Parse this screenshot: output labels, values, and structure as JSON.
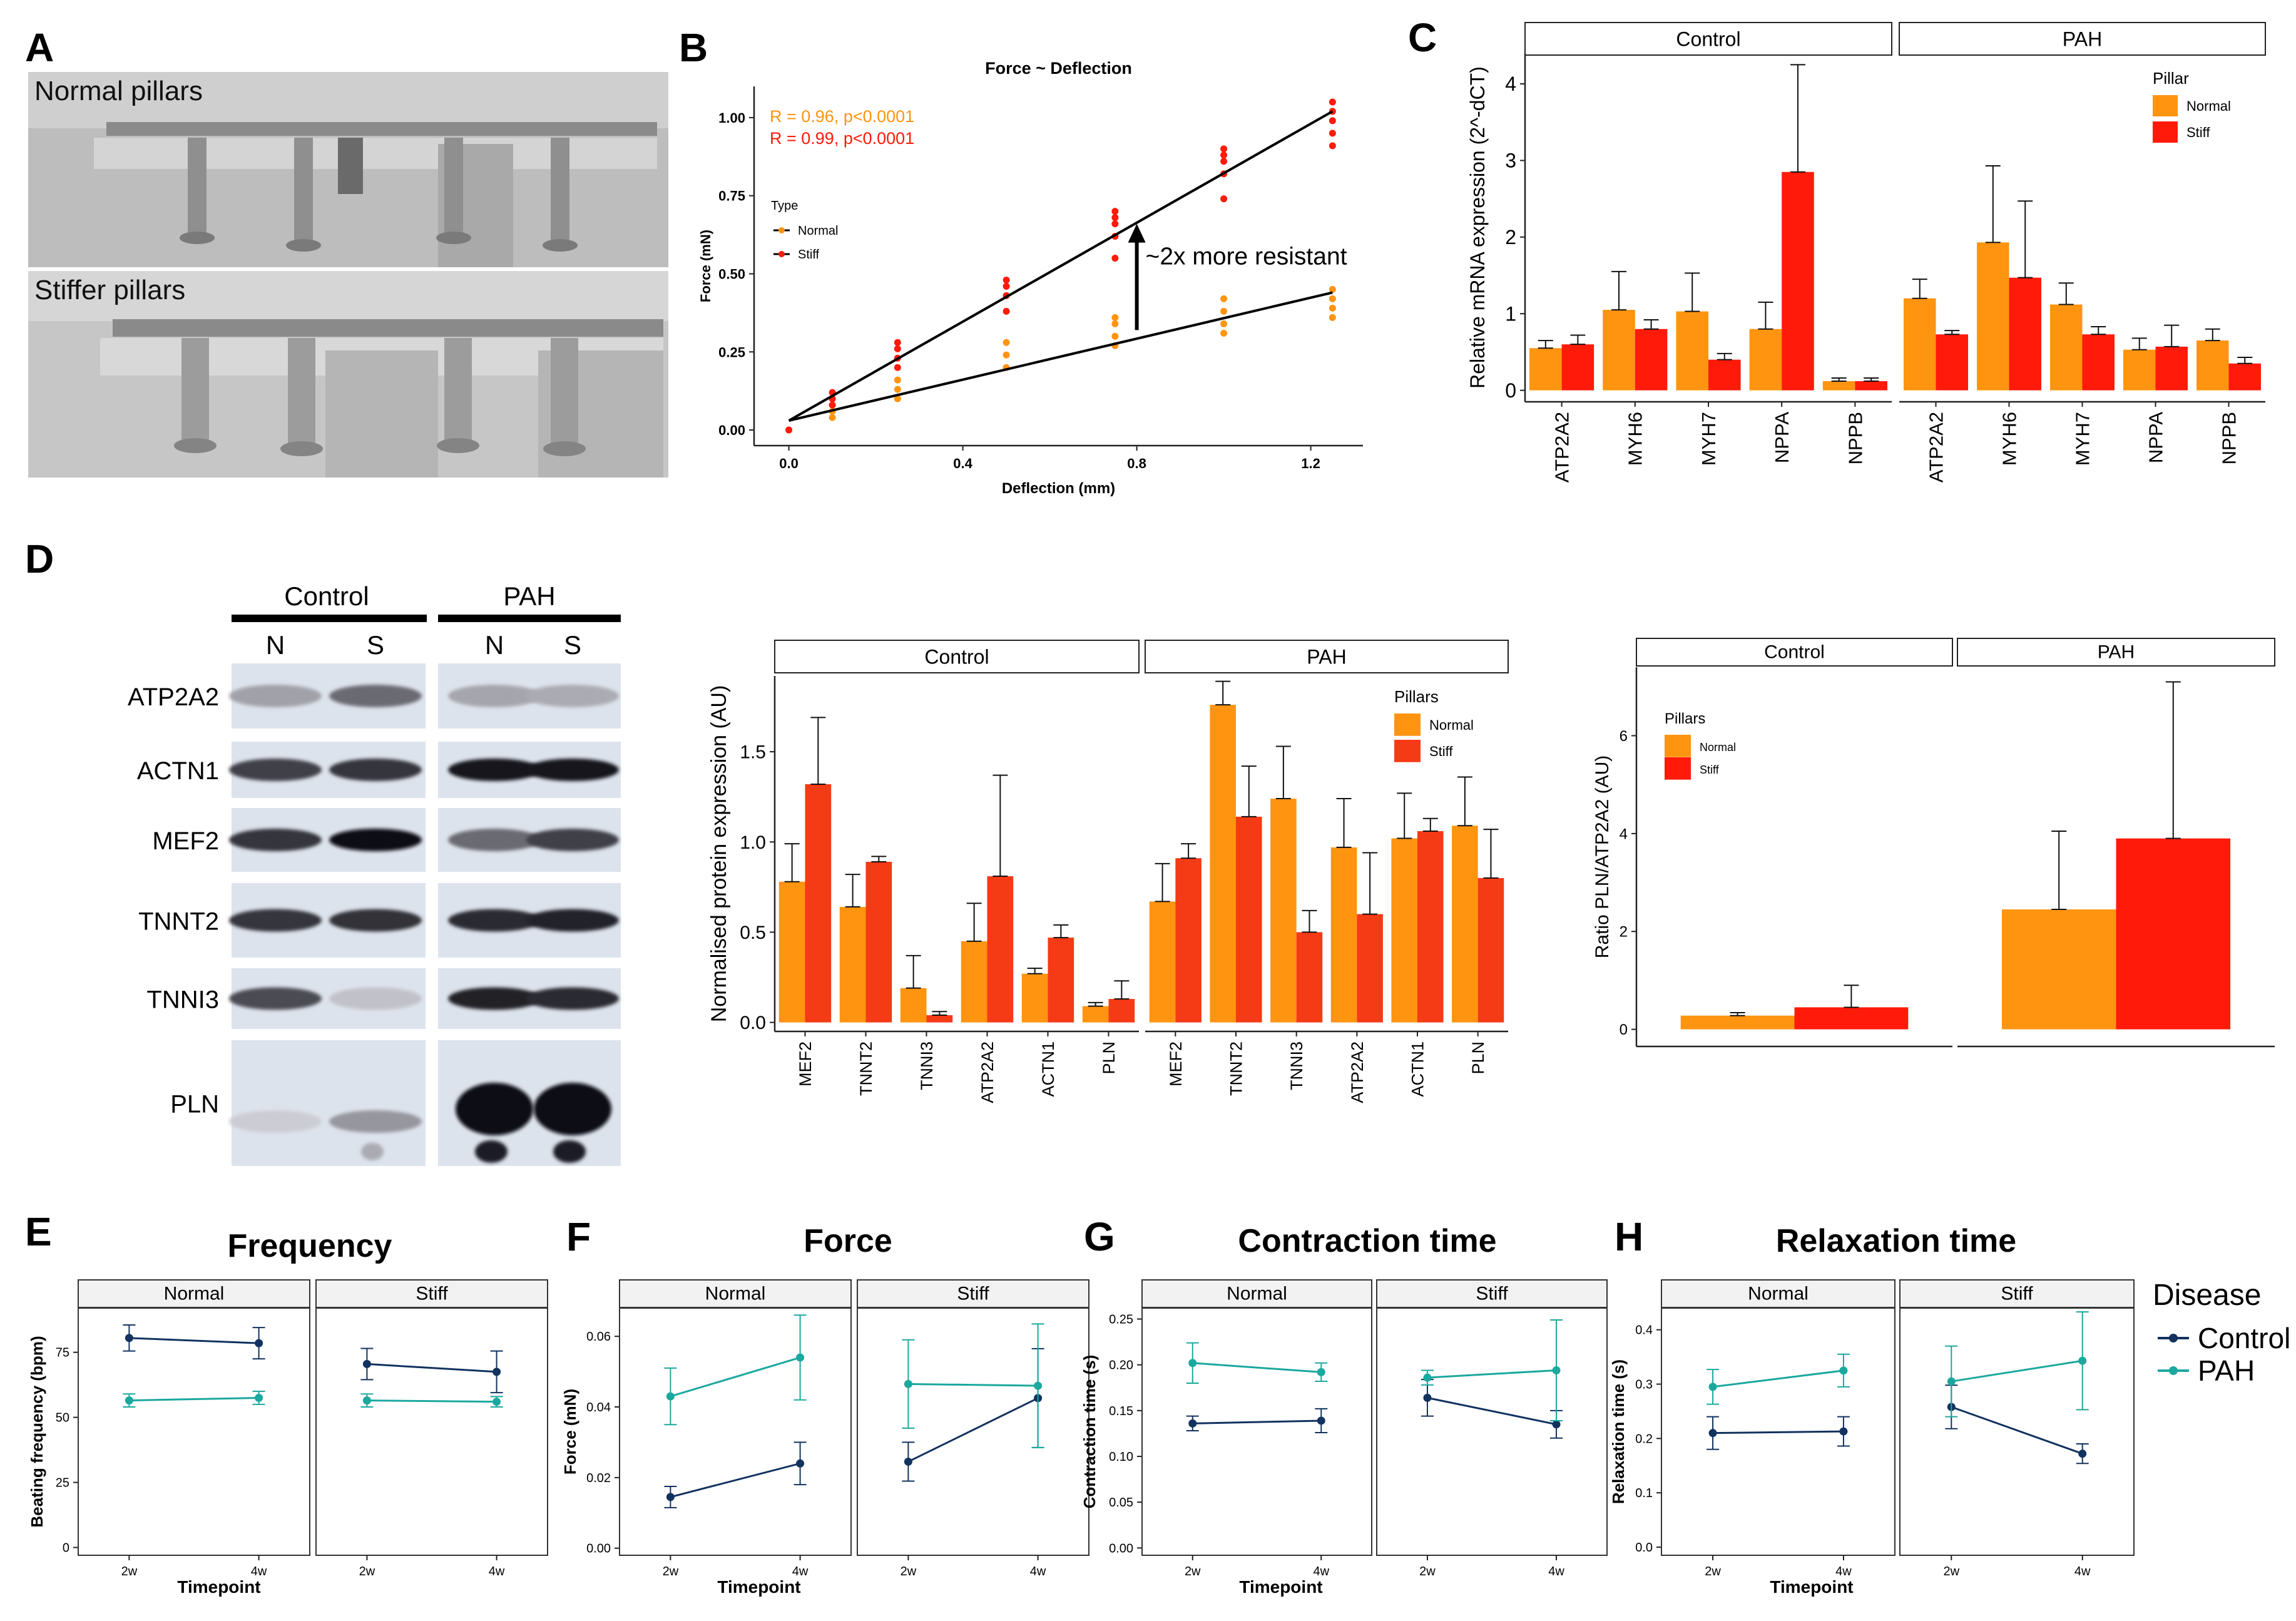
{
  "panel_letters": {
    "A": "A",
    "B": "B",
    "C": "C",
    "D": "D",
    "E": "E",
    "F": "F",
    "G": "G",
    "H": "H"
  },
  "colors": {
    "normal": "#ff9410",
    "stiff": "#ff1a0a",
    "stiff_d": "#f53a16",
    "control": "#12325f",
    "pah": "#1ba89e",
    "axis": "#222222",
    "strip": "#f2f2f2"
  },
  "panel_a": {
    "top_label": "Normal pillars",
    "bottom_label": "Stiffer pillars"
  },
  "blot": {
    "groups": [
      "Control",
      "PAH"
    ],
    "lanes": [
      "N",
      "S",
      "N",
      "S"
    ],
    "proteins": [
      "ATP2A2",
      "ACTN1",
      "MEF2",
      "TNNT2",
      "TNNI3",
      "PLN"
    ],
    "intensity": [
      [
        0.3,
        0.55,
        0.28,
        0.25
      ],
      [
        0.75,
        0.8,
        0.95,
        0.95
      ],
      [
        0.8,
        0.98,
        0.55,
        0.75
      ],
      [
        0.8,
        0.82,
        0.85,
        0.88
      ],
      [
        0.7,
        0.15,
        0.9,
        0.85
      ],
      [
        0.1,
        0.35,
        1.0,
        1.0
      ]
    ]
  },
  "chart_data": [
    {
      "id": "B",
      "type": "scatter",
      "title": "Force ~ Deflection",
      "xlabel": "Deflection (mm)",
      "ylabel": "Force (mN)",
      "xlim": [
        -0.08,
        1.32
      ],
      "ylim": [
        -0.05,
        1.1
      ],
      "xticks": [
        0.0,
        0.4,
        0.8,
        1.2
      ],
      "xtick_labels": [
        "0.0",
        "0.4",
        "0.8",
        "1.2"
      ],
      "yticks": [
        0.0,
        0.25,
        0.5,
        0.75,
        1.0
      ],
      "ytick_labels": [
        "0.00",
        "0.25",
        "0.50",
        "0.75",
        "1.00"
      ],
      "legend": {
        "title": "Type",
        "entries": [
          "Normal",
          "Stiff"
        ]
      },
      "stats": [
        "R = 0.96, p<0.0001",
        "R = 0.99, p<0.0001"
      ],
      "annotation": "~2x more resistant",
      "series": [
        {
          "name": "Normal",
          "fit": [
            [
              0,
              0.03
            ],
            [
              1.25,
              0.44
            ]
          ],
          "points": [
            [
              0,
              0.0
            ],
            [
              0.1,
              0.04
            ],
            [
              0.1,
              0.06
            ],
            [
              0.1,
              0.08
            ],
            [
              0.25,
              0.1
            ],
            [
              0.25,
              0.13
            ],
            [
              0.25,
              0.16
            ],
            [
              0.5,
              0.2
            ],
            [
              0.5,
              0.24
            ],
            [
              0.5,
              0.28
            ],
            [
              0.75,
              0.27
            ],
            [
              0.75,
              0.3
            ],
            [
              0.75,
              0.34
            ],
            [
              0.75,
              0.36
            ],
            [
              1.0,
              0.31
            ],
            [
              1.0,
              0.34
            ],
            [
              1.0,
              0.38
            ],
            [
              1.0,
              0.42
            ],
            [
              1.25,
              0.36
            ],
            [
              1.25,
              0.39
            ],
            [
              1.25,
              0.42
            ],
            [
              1.25,
              0.45
            ]
          ]
        },
        {
          "name": "Stiff",
          "fit": [
            [
              0,
              0.03
            ],
            [
              1.25,
              1.02
            ]
          ],
          "points": [
            [
              0,
              0.0
            ],
            [
              0.1,
              0.08
            ],
            [
              0.1,
              0.1
            ],
            [
              0.1,
              0.12
            ],
            [
              0.25,
              0.2
            ],
            [
              0.25,
              0.23
            ],
            [
              0.25,
              0.26
            ],
            [
              0.25,
              0.28
            ],
            [
              0.5,
              0.38
            ],
            [
              0.5,
              0.43
            ],
            [
              0.5,
              0.46
            ],
            [
              0.5,
              0.48
            ],
            [
              0.75,
              0.55
            ],
            [
              0.75,
              0.62
            ],
            [
              0.75,
              0.66
            ],
            [
              0.75,
              0.68
            ],
            [
              0.75,
              0.7
            ],
            [
              1.0,
              0.74
            ],
            [
              1.0,
              0.82
            ],
            [
              1.0,
              0.86
            ],
            [
              1.0,
              0.88
            ],
            [
              1.0,
              0.9
            ],
            [
              1.25,
              0.91
            ],
            [
              1.25,
              0.95
            ],
            [
              1.25,
              0.99
            ],
            [
              1.25,
              1.02
            ],
            [
              1.25,
              1.05
            ]
          ]
        }
      ]
    },
    {
      "id": "C",
      "type": "bar",
      "ylabel": "Relative mRNA expression (2^-dCT)",
      "ylim": [
        -0.15,
        4.4
      ],
      "yticks": [
        0,
        1,
        2,
        3,
        4
      ],
      "ytick_labels": [
        "0",
        "1",
        "2",
        "3",
        "4"
      ],
      "legend": {
        "title": "Pillar",
        "entries": [
          "Normal",
          "Stiff"
        ]
      },
      "facets": [
        {
          "label": "Control",
          "categories": [
            "ATP2A2",
            "MYH6",
            "MYH7",
            "NPPA",
            "NPPB"
          ],
          "series": [
            {
              "name": "Normal",
              "values": [
                0.55,
                1.05,
                1.03,
                0.8,
                0.12
              ],
              "errors": [
                0.1,
                0.5,
                0.5,
                0.35,
                0.04
              ]
            },
            {
              "name": "Stiff",
              "values": [
                0.6,
                0.8,
                0.4,
                2.85,
                0.12
              ],
              "errors": [
                0.12,
                0.12,
                0.08,
                1.4,
                0.04
              ]
            }
          ]
        },
        {
          "label": "PAH",
          "categories": [
            "ATP2A2",
            "MYH6",
            "MYH7",
            "NPPA",
            "NPPB"
          ],
          "series": [
            {
              "name": "Normal",
              "values": [
                1.2,
                1.93,
                1.12,
                0.53,
                0.65
              ],
              "errors": [
                0.25,
                1.0,
                0.28,
                0.15,
                0.15
              ]
            },
            {
              "name": "Stiff",
              "values": [
                0.73,
                1.47,
                0.73,
                0.57,
                0.35
              ],
              "errors": [
                0.05,
                1.0,
                0.1,
                0.28,
                0.08
              ]
            }
          ]
        }
      ]
    },
    {
      "id": "D2",
      "type": "bar",
      "ylabel": "Normalised protein expression (AU)",
      "ylim": [
        -0.05,
        1.92
      ],
      "yticks": [
        0.0,
        0.5,
        1.0,
        1.5
      ],
      "ytick_labels": [
        "0.0",
        "0.5",
        "1.0",
        "1.5"
      ],
      "legend": {
        "title": "Pillars",
        "entries": [
          "Normal",
          "Stiff"
        ]
      },
      "facets": [
        {
          "label": "Control",
          "categories": [
            "MEF2",
            "TNNT2",
            "TNNI3",
            "ATP2A2",
            "ACTN1",
            "PLN"
          ],
          "series": [
            {
              "name": "Normal",
              "values": [
                0.78,
                0.64,
                0.19,
                0.45,
                0.27,
                0.09
              ],
              "errors": [
                0.21,
                0.18,
                0.18,
                0.21,
                0.03,
                0.02
              ]
            },
            {
              "name": "Stiff",
              "values": [
                1.32,
                0.89,
                0.04,
                0.81,
                0.47,
                0.13
              ],
              "errors": [
                0.37,
                0.03,
                0.02,
                0.56,
                0.07,
                0.1
              ]
            }
          ]
        },
        {
          "label": "PAH",
          "categories": [
            "MEF2",
            "TNNT2",
            "TNNI3",
            "ATP2A2",
            "ACTN1",
            "PLN"
          ],
          "series": [
            {
              "name": "Normal",
              "values": [
                0.67,
                1.76,
                1.24,
                0.97,
                1.02,
                1.09
              ],
              "errors": [
                0.21,
                0.13,
                0.29,
                0.27,
                0.25,
                0.27
              ]
            },
            {
              "name": "Stiff",
              "values": [
                0.91,
                1.14,
                0.5,
                0.6,
                1.06,
                0.8
              ],
              "errors": [
                0.08,
                0.28,
                0.12,
                0.34,
                0.07,
                0.27
              ]
            }
          ]
        }
      ]
    },
    {
      "id": "D3",
      "type": "bar",
      "ylabel": "Ratio PLN/ATP2A2 (AU)",
      "ylim": [
        -0.35,
        7.4
      ],
      "yticks": [
        0,
        2,
        4,
        6
      ],
      "ytick_labels": [
        "0",
        "2",
        "4",
        "6"
      ],
      "legend": {
        "title": "Pillars",
        "entries": [
          "Normal",
          "Stiff"
        ]
      },
      "facets": [
        {
          "label": "Control",
          "categories": [
            ""
          ],
          "series": [
            {
              "name": "Normal",
              "values": [
                0.28
              ],
              "errors": [
                0.06
              ]
            },
            {
              "name": "Stiff",
              "values": [
                0.45
              ],
              "errors": [
                0.45
              ]
            }
          ]
        },
        {
          "label": "PAH",
          "categories": [
            ""
          ],
          "series": [
            {
              "name": "Normal",
              "values": [
                2.45
              ],
              "errors": [
                1.6
              ]
            },
            {
              "name": "Stiff",
              "values": [
                3.9
              ],
              "errors": [
                3.2
              ]
            }
          ]
        }
      ]
    },
    {
      "id": "E",
      "type": "line",
      "title": "Frequency",
      "xlabel": "Timepoint",
      "ylabel": "Beating frequency (bpm)",
      "ylim": [
        -3,
        92
      ],
      "yticks": [
        0,
        25,
        50,
        75
      ],
      "ytick_labels": [
        "0",
        "25",
        "50",
        "75"
      ],
      "categories": [
        "2w",
        "4w"
      ],
      "facets": [
        {
          "label": "Normal",
          "series": [
            {
              "name": "Control",
              "values": [
                80.5,
                78.5
              ],
              "errors": [
                5,
                6
              ]
            },
            {
              "name": "PAH",
              "values": [
                56.5,
                57.5
              ],
              "errors": [
                2.5,
                2.5
              ]
            }
          ]
        },
        {
          "label": "Stiff",
          "series": [
            {
              "name": "Control",
              "values": [
                70.5,
                67.5
              ],
              "errors": [
                6,
                8
              ]
            },
            {
              "name": "PAH",
              "values": [
                56.5,
                56.0
              ],
              "errors": [
                2.5,
                2
              ]
            }
          ]
        }
      ]
    },
    {
      "id": "F",
      "type": "line",
      "title": "Force",
      "xlabel": "Timepoint",
      "ylabel": "Force (mN)",
      "ylim": [
        -0.002,
        0.068
      ],
      "yticks": [
        0.0,
        0.02,
        0.04,
        0.06
      ],
      "ytick_labels": [
        "0.00",
        "0.02",
        "0.04",
        "0.06"
      ],
      "categories": [
        "2w",
        "4w"
      ],
      "facets": [
        {
          "label": "Normal",
          "series": [
            {
              "name": "Control",
              "values": [
                0.0145,
                0.024
              ],
              "errors": [
                0.003,
                0.006
              ]
            },
            {
              "name": "PAH",
              "values": [
                0.043,
                0.054
              ],
              "errors": [
                0.008,
                0.012
              ]
            }
          ]
        },
        {
          "label": "Stiff",
          "series": [
            {
              "name": "Control",
              "values": [
                0.0245,
                0.0425
              ],
              "errors": [
                0.0055,
                0.014
              ]
            },
            {
              "name": "PAH",
              "values": [
                0.0465,
                0.046
              ],
              "errors": [
                0.0125,
                0.0175
              ]
            }
          ]
        }
      ]
    },
    {
      "id": "G",
      "type": "line",
      "title": "Contraction time",
      "xlabel": "Timepoint",
      "ylabel": "Contraction time (s)",
      "ylim": [
        -0.008,
        0.262
      ],
      "yticks": [
        0.0,
        0.05,
        0.1,
        0.15,
        0.2,
        0.25
      ],
      "ytick_labels": [
        "0.00",
        "0.05",
        "0.10",
        "0.15",
        "0.20",
        "0.25"
      ],
      "categories": [
        "2w",
        "4w"
      ],
      "facets": [
        {
          "label": "Normal",
          "series": [
            {
              "name": "Control",
              "values": [
                0.136,
                0.139
              ],
              "errors": [
                0.008,
                0.013
              ]
            },
            {
              "name": "PAH",
              "values": [
                0.202,
                0.192
              ],
              "errors": [
                0.022,
                0.01
              ]
            }
          ]
        },
        {
          "label": "Stiff",
          "series": [
            {
              "name": "Control",
              "values": [
                0.164,
                0.135
              ],
              "errors": [
                0.02,
                0.015
              ]
            },
            {
              "name": "PAH",
              "values": [
                0.186,
                0.194
              ],
              "errors": [
                0.008,
                0.055
              ]
            }
          ]
        }
      ]
    },
    {
      "id": "H",
      "type": "line",
      "title": "Relaxation time",
      "xlabel": "Timepoint",
      "ylabel": "Relaxation time (s)",
      "ylim": [
        -0.015,
        0.44
      ],
      "yticks": [
        0.0,
        0.1,
        0.2,
        0.3,
        0.4
      ],
      "ytick_labels": [
        "0.0",
        "0.1",
        "0.2",
        "0.3",
        "0.4"
      ],
      "categories": [
        "2w",
        "4w"
      ],
      "facets": [
        {
          "label": "Normal",
          "series": [
            {
              "name": "Control",
              "values": [
                0.21,
                0.213
              ],
              "errors": [
                0.03,
                0.027
              ]
            },
            {
              "name": "PAH",
              "values": [
                0.295,
                0.325
              ],
              "errors": [
                0.032,
                0.03
              ]
            }
          ]
        },
        {
          "label": "Stiff",
          "series": [
            {
              "name": "Control",
              "values": [
                0.258,
                0.172
              ],
              "errors": [
                0.04,
                0.018
              ]
            },
            {
              "name": "PAH",
              "values": [
                0.305,
                0.343
              ],
              "errors": [
                0.065,
                0.09
              ]
            }
          ]
        }
      ]
    }
  ],
  "line_legend": {
    "title": "Disease",
    "entries": [
      "Control",
      "PAH"
    ]
  }
}
